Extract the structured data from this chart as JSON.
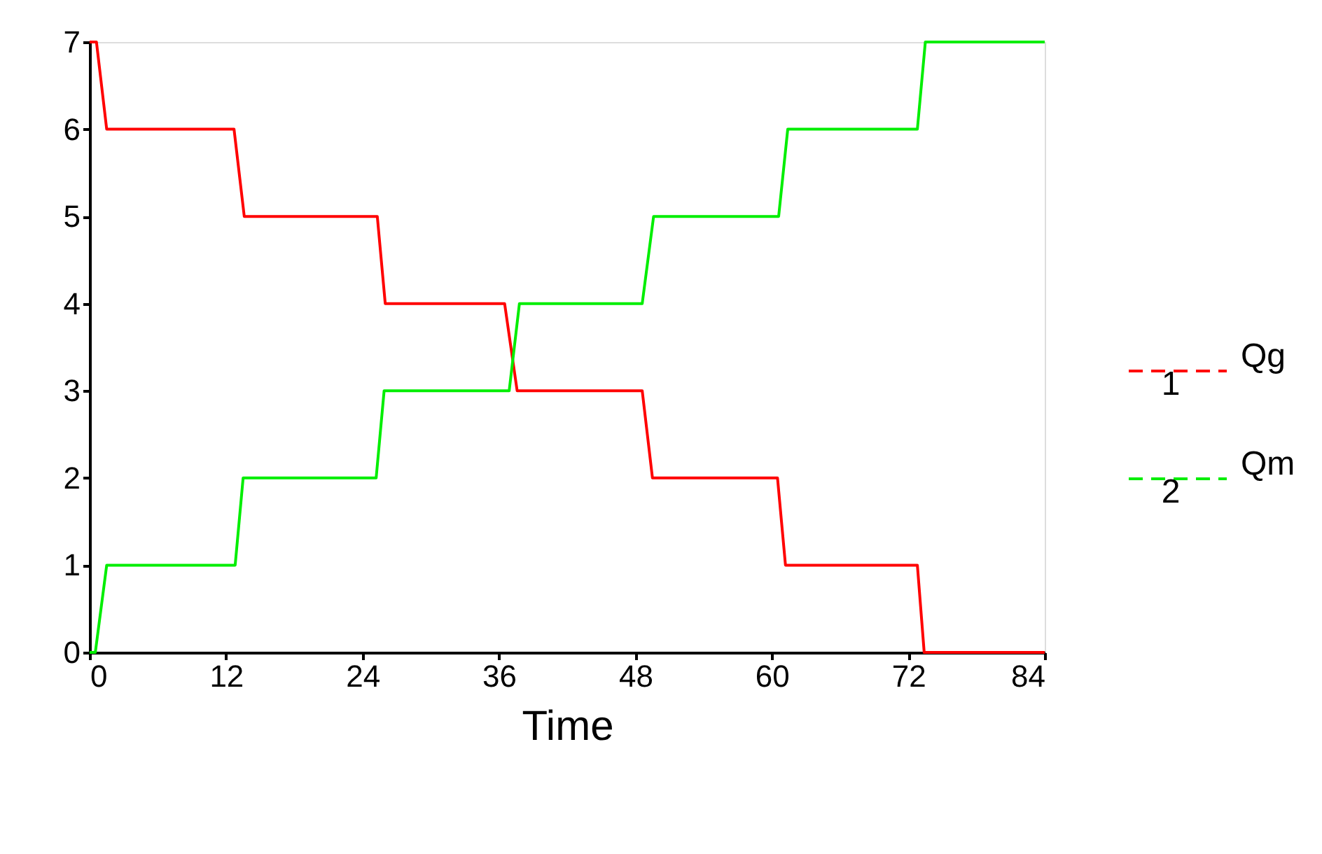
{
  "chart_data": {
    "type": "line",
    "xlabel": "Time",
    "xlim": [
      0,
      84
    ],
    "xticks": [
      0,
      12,
      24,
      36,
      48,
      60,
      72,
      84
    ],
    "ylim": [
      0,
      7
    ],
    "yticks": [
      0,
      1,
      2,
      3,
      4,
      5,
      6,
      7
    ],
    "grid": false,
    "legend": "right",
    "marker": "none",
    "line_style": "solid",
    "annotations": [
      "1",
      "2"
    ],
    "series": [
      {
        "name": "Qg",
        "color": "#ff0000",
        "x": [
          0,
          0.6,
          1.5,
          12.7,
          13.6,
          25.3,
          26,
          36.5,
          37.6,
          48.6,
          49.5,
          60.5,
          61.2,
          72.8,
          73.4,
          84
        ],
        "values": [
          7,
          7,
          6,
          6,
          5,
          5,
          4,
          4,
          3,
          3,
          2,
          2,
          1,
          1,
          0,
          0
        ]
      },
      {
        "name": "Qm",
        "color": "#00ee00",
        "x": [
          0,
          0.5,
          1.5,
          12.8,
          13.5,
          25.2,
          25.9,
          36.9,
          37.8,
          48.6,
          49.6,
          60.6,
          61.4,
          72.8,
          73.5,
          84
        ],
        "values": [
          0,
          0,
          1,
          1,
          2,
          2,
          3,
          3,
          4,
          4,
          5,
          5,
          6,
          6,
          7,
          7
        ]
      }
    ]
  }
}
